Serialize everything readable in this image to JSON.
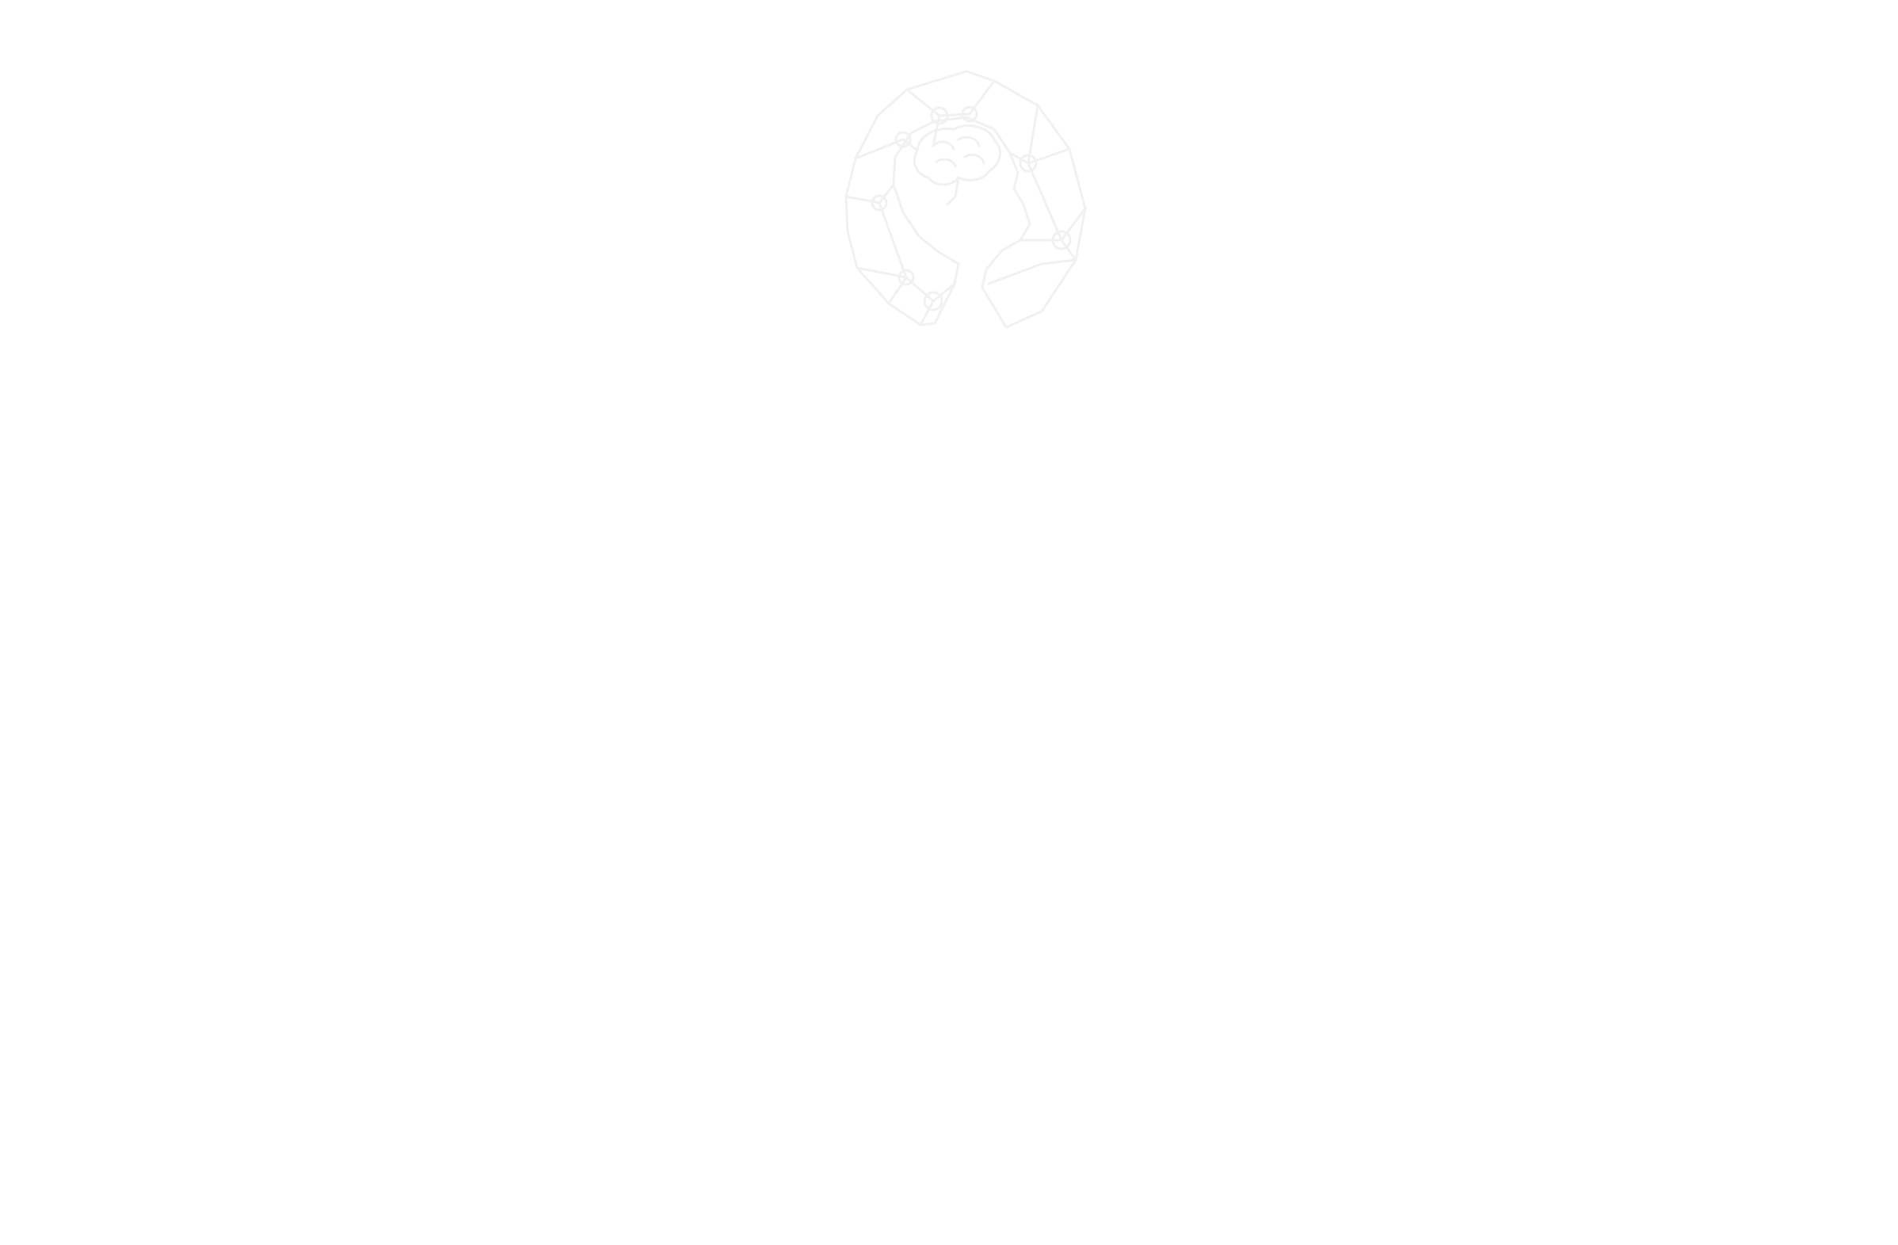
{
  "page": {
    "background_color": "#ffffff"
  },
  "logo": {
    "icon": "head-brain-network-icon",
    "stroke_color": "#f1f1f1"
  }
}
